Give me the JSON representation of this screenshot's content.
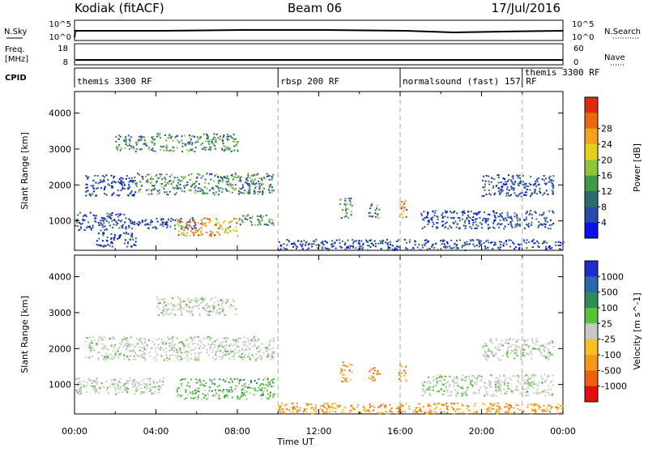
{
  "header": {
    "station": "Kodiak (fitACF)",
    "beam": "Beam 06",
    "date": "17/Jul/2016"
  },
  "top_panels": {
    "nsky_label": "N.Sky",
    "nsearch_label": "N.Search",
    "nsky_ticks": [
      "10^5",
      "10^0"
    ],
    "nsearch_ticks": [
      "10^5",
      "10^0"
    ],
    "freq_label_1": "Freq.",
    "freq_label_2": "[MHz]",
    "freq_ticks": [
      "18",
      "8"
    ],
    "nave_label": "Nave",
    "nave_ticks": [
      "60",
      "0"
    ],
    "cpid_label": "CPID",
    "cpid_segments": [
      {
        "label": "themis 3300 RF",
        "start_h": 0,
        "end_h": 10
      },
      {
        "label": "rbsp 200 RF",
        "start_h": 10,
        "end_h": 16
      },
      {
        "label": "normalsound (fast) 157 RF",
        "start_h": 16,
        "end_h": 22
      },
      {
        "label": "themis 3300 RF",
        "start_h": 22,
        "end_h": 24
      }
    ]
  },
  "chart_data": [
    {
      "type": "heatmap",
      "name": "power",
      "ylabel": "Slant Range [km]",
      "ylim": [
        180,
        4600
      ],
      "yticks": [
        "1000",
        "2000",
        "3000",
        "4000"
      ],
      "xlim_hours": [
        0,
        24
      ],
      "colorbar": {
        "label": "Power [dB]",
        "ticks": [
          "4",
          "8",
          "12",
          "16",
          "20",
          "24",
          "28"
        ],
        "colors": [
          "#0a10e8",
          "#2c49b0",
          "#2b6d6a",
          "#3f9a4c",
          "#8ec63a",
          "#e0d21a",
          "#f3a21c",
          "#e86a10",
          "#e02a10"
        ]
      },
      "regions": [
        {
          "t": [
            2.0,
            4.0
          ],
          "r": [
            2950,
            3400
          ],
          "level": "high"
        },
        {
          "t": [
            4.0,
            8.0
          ],
          "r": [
            2950,
            3450
          ],
          "level": "high"
        },
        {
          "t": [
            0.5,
            3.0
          ],
          "r": [
            1700,
            2300
          ],
          "level": "low"
        },
        {
          "t": [
            3.0,
            9.8
          ],
          "r": [
            1750,
            2350
          ],
          "level": "high"
        },
        {
          "t": [
            0.0,
            2.5
          ],
          "r": [
            750,
            1250
          ],
          "level": "low"
        },
        {
          "t": [
            2.5,
            6.0
          ],
          "r": [
            800,
            1100
          ],
          "level": "low"
        },
        {
          "t": [
            5.0,
            8.0
          ],
          "r": [
            600,
            1100
          ],
          "level": "peak"
        },
        {
          "t": [
            8.0,
            9.8
          ],
          "r": [
            900,
            1200
          ],
          "level": "high"
        },
        {
          "t": [
            1.0,
            3.0
          ],
          "r": [
            300,
            700
          ],
          "level": "low"
        },
        {
          "t": [
            13.0,
            13.6
          ],
          "r": [
            1100,
            1650
          ],
          "level": "high"
        },
        {
          "t": [
            14.4,
            15.0
          ],
          "r": [
            1100,
            1500
          ],
          "level": "high"
        },
        {
          "t": [
            15.9,
            16.3
          ],
          "r": [
            1100,
            1600
          ],
          "level": "peak"
        },
        {
          "t": [
            17.0,
            23.5
          ],
          "r": [
            800,
            1300
          ],
          "level": "low"
        },
        {
          "t": [
            20.0,
            23.5
          ],
          "r": [
            1700,
            2300
          ],
          "level": "low"
        },
        {
          "t": [
            10.0,
            24.0
          ],
          "r": [
            200,
            500
          ],
          "level": "low"
        }
      ]
    },
    {
      "type": "heatmap",
      "name": "velocity",
      "ylabel": "Slant Range [km]",
      "ylim": [
        180,
        4600
      ],
      "yticks": [
        "1000",
        "2000",
        "3000",
        "4000"
      ],
      "xlim_hours": [
        0,
        24
      ],
      "colorbar": {
        "label": "Velocity [m s^-1]",
        "ticks": [
          "1000",
          "500",
          "100",
          "25",
          "-25",
          "-100",
          "-500",
          "-1000"
        ],
        "colors": [
          "#1a2ec8",
          "#2e66b0",
          "#2f8a5a",
          "#55c23a",
          "#c8c8c8",
          "#f5c020",
          "#f39a1c",
          "#ee6010",
          "#e01010"
        ]
      },
      "regions": [
        {
          "t": [
            4.0,
            8.0
          ],
          "r": [
            2950,
            3450
          ],
          "level": "zero"
        },
        {
          "t": [
            0.5,
            9.8
          ],
          "r": [
            1700,
            2350
          ],
          "level": "zero"
        },
        {
          "t": [
            0.0,
            4.5
          ],
          "r": [
            750,
            1200
          ],
          "level": "zero"
        },
        {
          "t": [
            5.0,
            9.8
          ],
          "r": [
            600,
            1200
          ],
          "level": "pos"
        },
        {
          "t": [
            13.0,
            13.6
          ],
          "r": [
            1100,
            1650
          ],
          "level": "neg"
        },
        {
          "t": [
            14.4,
            15.0
          ],
          "r": [
            1100,
            1500
          ],
          "level": "neg"
        },
        {
          "t": [
            15.9,
            16.3
          ],
          "r": [
            1100,
            1600
          ],
          "level": "neg"
        },
        {
          "t": [
            17.0,
            23.5
          ],
          "r": [
            700,
            1300
          ],
          "level": "zero"
        },
        {
          "t": [
            20.0,
            23.5
          ],
          "r": [
            1700,
            2300
          ],
          "level": "zero"
        },
        {
          "t": [
            10.0,
            24.0
          ],
          "r": [
            200,
            500
          ],
          "level": "neg"
        }
      ]
    }
  ],
  "xaxis": {
    "ticks": [
      "00:00",
      "04:00",
      "08:00",
      "12:00",
      "16:00",
      "20:00",
      "00:00"
    ],
    "label": "Time UT"
  }
}
